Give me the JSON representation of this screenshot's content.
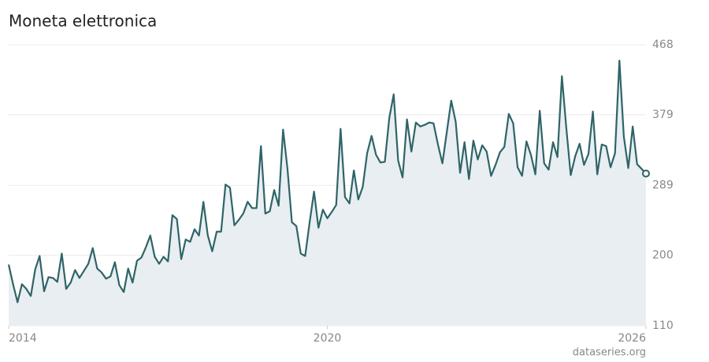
{
  "chart_data": {
    "type": "line",
    "title": "Moneta elettronica",
    "source": "dataseries.org",
    "x": [
      2014,
      2014.083,
      2014.167,
      2014.25,
      2014.333,
      2014.417,
      2014.5,
      2014.583,
      2014.667,
      2014.75,
      2014.833,
      2014.917,
      2015,
      2015.083,
      2015.167,
      2015.25,
      2015.333,
      2015.417,
      2015.5,
      2015.583,
      2015.667,
      2015.75,
      2015.833,
      2015.917,
      2016,
      2016.083,
      2016.167,
      2016.25,
      2016.333,
      2016.417,
      2016.5,
      2016.583,
      2016.667,
      2016.75,
      2016.833,
      2016.917,
      2017,
      2017.083,
      2017.167,
      2017.25,
      2017.333,
      2017.417,
      2017.5,
      2017.583,
      2017.667,
      2017.75,
      2017.833,
      2017.917,
      2018,
      2018.083,
      2018.167,
      2018.25,
      2018.333,
      2018.417,
      2018.5,
      2018.583,
      2018.667,
      2018.75,
      2018.833,
      2018.917,
      2019,
      2019.083,
      2019.167,
      2019.25,
      2019.333,
      2019.417,
      2019.5,
      2019.583,
      2019.667,
      2019.75,
      2019.833,
      2019.917,
      2020,
      2020.083,
      2020.167,
      2020.25,
      2020.333,
      2020.417,
      2020.5,
      2020.583,
      2020.667,
      2020.75,
      2020.833,
      2020.917,
      2021,
      2021.083,
      2021.167,
      2021.25,
      2021.333,
      2021.417,
      2021.5,
      2021.583,
      2021.667,
      2021.75,
      2021.833,
      2021.917,
      2022,
      2022.083,
      2022.167,
      2022.25,
      2022.333,
      2022.417,
      2022.5,
      2022.583,
      2022.667,
      2022.75,
      2022.833,
      2022.917,
      2023,
      2023.083,
      2023.167,
      2023.25,
      2023.333,
      2023.417,
      2023.5,
      2023.583,
      2023.667,
      2023.75,
      2023.833,
      2023.917,
      2024,
      2024.083,
      2024.167,
      2024.25,
      2024.333,
      2024.417,
      2024.5,
      2024.583,
      2024.667,
      2024.75,
      2024.833,
      2024.917,
      2025,
      2025.083,
      2025.167,
      2025.25,
      2025.333,
      2025.417,
      2025.5,
      2025.583,
      2025.667,
      2025.75,
      2025.833,
      2025.917,
      2026
    ],
    "series": [
      {
        "color": "#2f6468",
        "values": [
          188,
          163,
          140,
          163,
          157,
          148,
          182,
          199,
          154,
          172,
          171,
          166,
          202,
          157,
          165,
          181,
          171,
          180,
          189,
          209,
          183,
          178,
          170,
          173,
          191,
          162,
          153,
          183,
          165,
          193,
          197,
          210,
          225,
          198,
          189,
          198,
          192,
          251,
          246,
          195,
          220,
          217,
          233,
          225,
          268,
          225,
          205,
          230,
          230,
          290,
          286,
          238,
          245,
          253,
          268,
          260,
          260,
          339,
          253,
          256,
          283,
          263,
          360,
          310,
          242,
          237,
          202,
          199,
          242,
          281,
          235,
          258,
          247,
          255,
          264,
          361,
          274,
          266,
          308,
          271,
          287,
          330,
          352,
          328,
          318,
          319,
          375,
          405,
          321,
          299,
          373,
          332,
          369,
          364,
          366,
          369,
          368,
          341,
          317,
          357,
          397,
          370,
          305,
          344,
          297,
          346,
          322,
          340,
          332,
          301,
          315,
          331,
          338,
          380,
          368,
          312,
          301,
          345,
          328,
          303,
          384,
          317,
          309,
          344,
          325,
          428,
          362,
          302,
          326,
          342,
          315,
          329,
          383,
          303,
          341,
          339,
          312,
          330,
          448,
          351,
          311,
          364,
          316,
          310,
          304
        ]
      }
    ],
    "xlim": [
      2014,
      2026
    ],
    "xticks": [
      2014,
      2020,
      2026
    ],
    "ylim": [
      110,
      468
    ],
    "yticks": [
      110,
      200,
      289,
      379,
      468
    ],
    "grid": true,
    "area_color": "#e8eef1"
  }
}
